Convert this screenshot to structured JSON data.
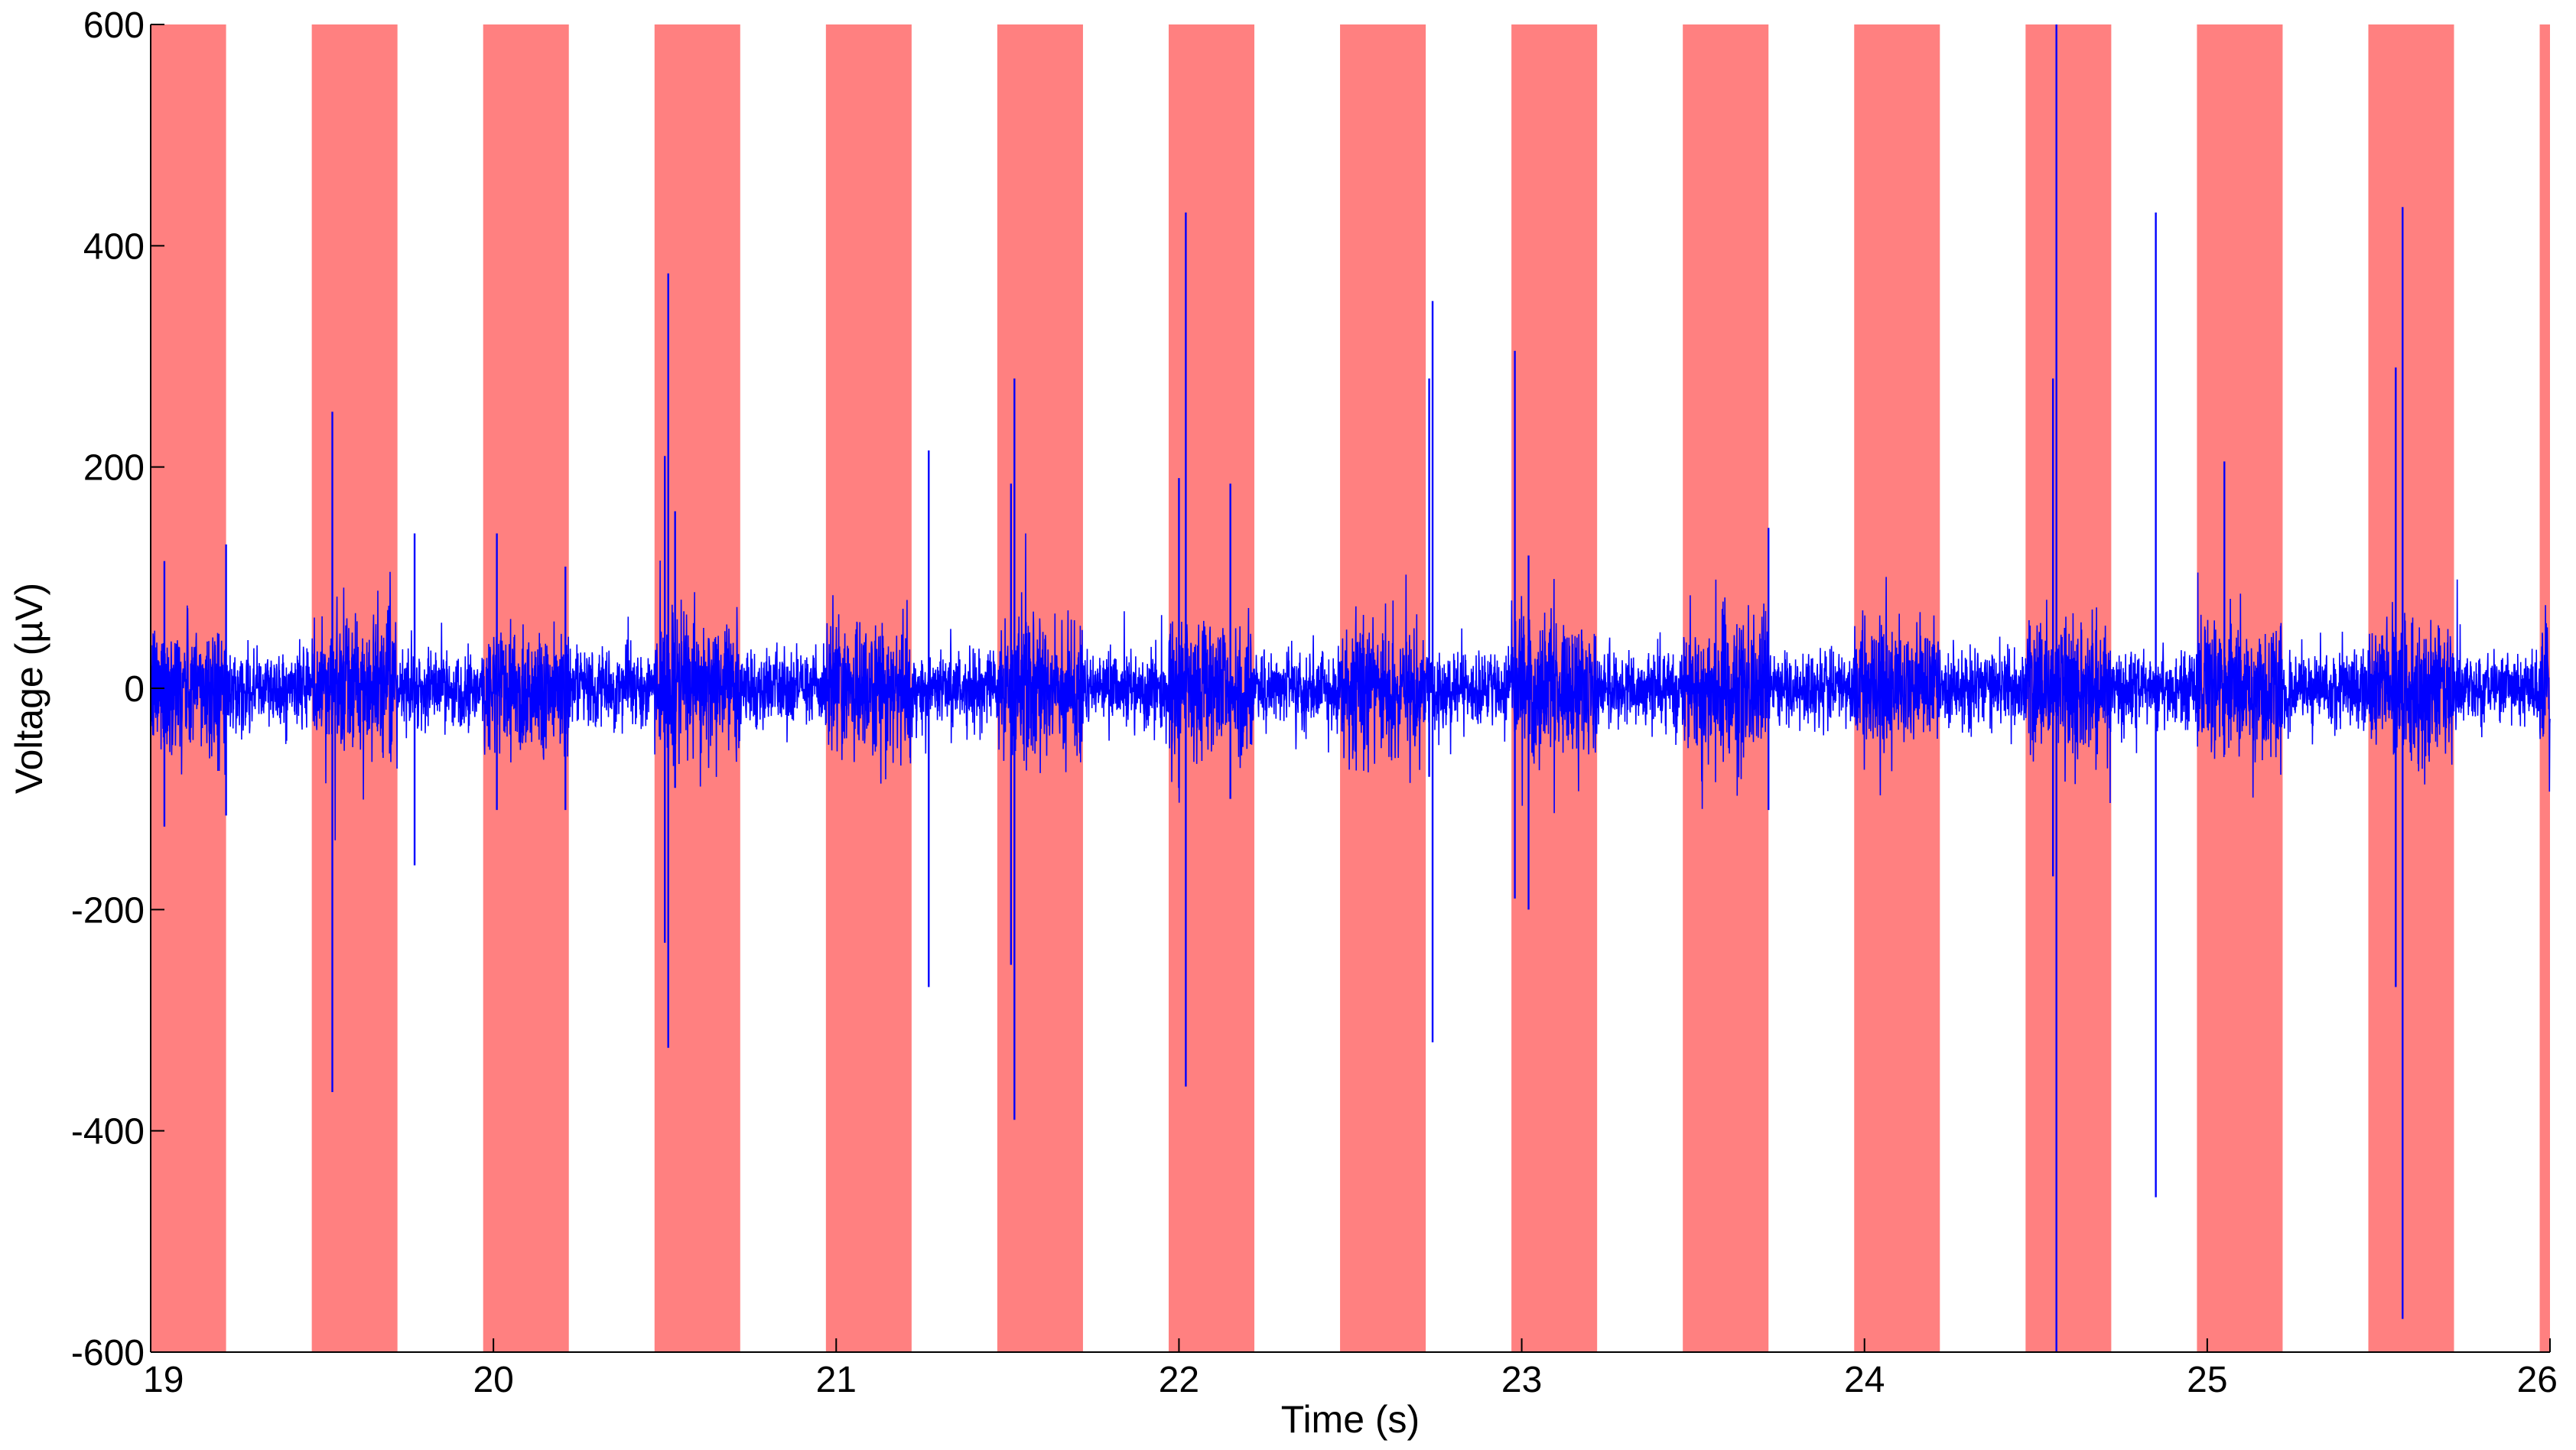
{
  "chart_data": {
    "type": "line",
    "title": "",
    "xlabel": "Time (s)",
    "ylabel": "Voltage (µV)",
    "xlim": [
      19,
      26
    ],
    "ylim": [
      -600,
      600
    ],
    "xticks": [
      19,
      20,
      21,
      22,
      23,
      24,
      25,
      26
    ],
    "yticks": [
      -600,
      -400,
      -200,
      0,
      200,
      400,
      600
    ],
    "grid": false,
    "legend": "none",
    "colors": {
      "signal": "#0000ff",
      "stimulus_band": "#ff8080",
      "axis": "#000000",
      "background": "#ffffff"
    },
    "stimulus_intervals": [
      [
        19.0,
        19.22
      ],
      [
        19.47,
        19.72
      ],
      [
        19.97,
        20.22
      ],
      [
        20.47,
        20.72
      ],
      [
        20.97,
        21.22
      ],
      [
        21.47,
        21.72
      ],
      [
        21.97,
        22.22
      ],
      [
        22.47,
        22.72
      ],
      [
        22.97,
        23.22
      ],
      [
        23.47,
        23.72
      ],
      [
        23.97,
        24.22
      ],
      [
        24.47,
        24.72
      ],
      [
        24.97,
        25.22
      ],
      [
        25.47,
        25.72
      ],
      [
        25.97,
        26.0
      ]
    ],
    "noise_amplitude_baseline": 30,
    "noise_amplitude_in_stimulus": 55,
    "spikes": [
      {
        "t": 19.04,
        "max": 115,
        "min": -125
      },
      {
        "t": 19.22,
        "max": 130,
        "min": -115
      },
      {
        "t": 19.53,
        "max": 250,
        "min": -365
      },
      {
        "t": 19.77,
        "max": 140,
        "min": -160
      },
      {
        "t": 20.01,
        "max": 140,
        "min": -110
      },
      {
        "t": 20.21,
        "max": 110,
        "min": -110
      },
      {
        "t": 20.5,
        "max": 210,
        "min": -230
      },
      {
        "t": 20.51,
        "max": 375,
        "min": -325
      },
      {
        "t": 20.53,
        "max": 160,
        "min": -90
      },
      {
        "t": 21.27,
        "max": 215,
        "min": -270
      },
      {
        "t": 21.52,
        "max": 280,
        "min": -390
      },
      {
        "t": 21.51,
        "max": 185,
        "min": -250
      },
      {
        "t": 22.02,
        "max": 430,
        "min": -360
      },
      {
        "t": 22.0,
        "max": 190,
        "min": -90
      },
      {
        "t": 22.15,
        "max": 185,
        "min": -100
      },
      {
        "t": 22.74,
        "max": 350,
        "min": -320
      },
      {
        "t": 22.73,
        "max": 280,
        "min": -80
      },
      {
        "t": 22.98,
        "max": 305,
        "min": -190
      },
      {
        "t": 23.02,
        "max": 120,
        "min": -200
      },
      {
        "t": 23.72,
        "max": 145,
        "min": -110
      },
      {
        "t": 24.55,
        "max": 280,
        "min": -170
      },
      {
        "t": 24.56,
        "max": 600,
        "min": -600
      },
      {
        "t": 24.85,
        "max": 430,
        "min": -460
      },
      {
        "t": 25.05,
        "max": 205,
        "min": -60
      },
      {
        "t": 25.55,
        "max": 290,
        "min": -270
      },
      {
        "t": 25.57,
        "max": 435,
        "min": -570
      }
    ]
  }
}
